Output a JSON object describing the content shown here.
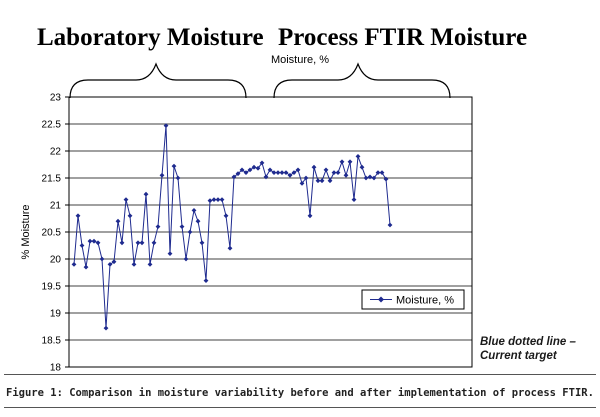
{
  "headings": {
    "left": "Laboratory Moisture",
    "right": "Process FTIR Moisture"
  },
  "note": {
    "line1": "Blue dotted line –",
    "line2": "Current target"
  },
  "caption": "Figure 1: Comparison in moisture variability before and after implementation of process FTIR.",
  "chart_data": {
    "type": "line",
    "title": "Moisture, %",
    "ylabel": "% Moisture",
    "xlabel": "",
    "ylim": [
      18,
      23
    ],
    "yticks": [
      "18",
      "18.5",
      "19",
      "19.5",
      "20",
      "20.5",
      "21",
      "21.5",
      "22",
      "22.5",
      "23"
    ],
    "grid": "horizontal",
    "legend_position": "lower-right",
    "series": [
      {
        "name": "Moisture, %",
        "color": "#1f2b8f",
        "values": [
          19.9,
          20.8,
          20.25,
          19.85,
          20.33,
          20.33,
          20.3,
          20.0,
          18.72,
          19.9,
          19.95,
          20.7,
          20.3,
          21.1,
          20.8,
          19.9,
          20.3,
          20.3,
          21.2,
          19.9,
          20.3,
          20.6,
          21.55,
          22.47,
          20.1,
          21.72,
          21.5,
          20.6,
          20.0,
          20.5,
          20.9,
          20.7,
          20.3,
          19.6,
          21.08,
          21.1,
          21.1,
          21.1,
          20.8,
          20.2,
          21.52,
          21.58,
          21.65,
          21.6,
          21.65,
          21.7,
          21.68,
          21.78,
          21.52,
          21.65,
          21.6,
          21.6,
          21.6,
          21.6,
          21.55,
          21.6,
          21.65,
          21.4,
          21.5,
          20.8,
          21.7,
          21.45,
          21.45,
          21.65,
          21.45,
          21.6,
          21.6,
          21.8,
          21.55,
          21.8,
          21.1,
          21.9,
          21.7,
          21.5,
          21.52,
          21.5,
          21.6,
          21.6,
          21.48,
          20.63
        ]
      }
    ]
  }
}
